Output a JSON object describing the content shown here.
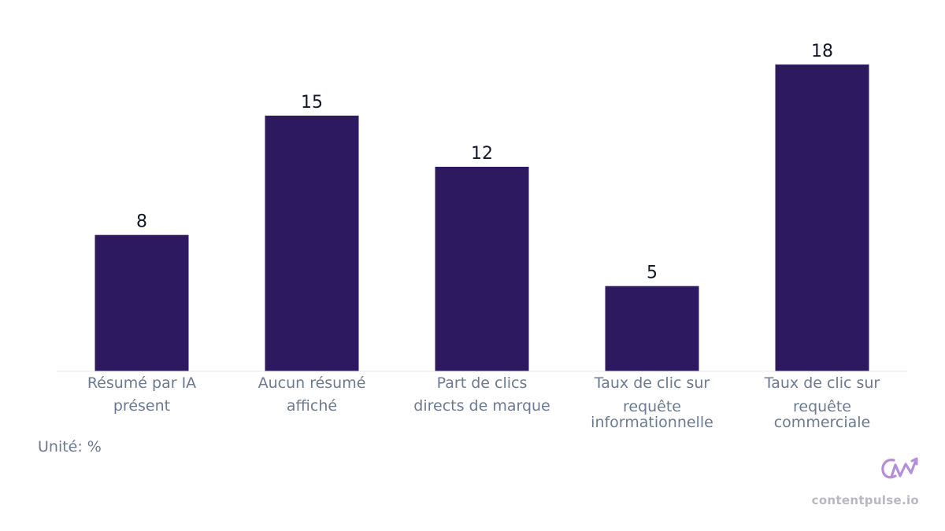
{
  "chart_data": {
    "type": "bar",
    "categories": [
      [
        "Résumé par IA",
        "présent"
      ],
      [
        "Aucun résumé",
        "affiché"
      ],
      [
        "Part de clics",
        "directs de marque"
      ],
      [
        "Taux de clic sur",
        "requête",
        "informationnelle"
      ],
      [
        "Taux de clic sur",
        "requête",
        "commerciale"
      ]
    ],
    "values": [
      8,
      15,
      12,
      5,
      18
    ],
    "ylim": [
      0,
      18
    ],
    "bar_color": "#2d1960",
    "value_label_color": "#111827",
    "tick_label_color": "#6b7a90",
    "axis_color": "#e5e7eb",
    "grid": false
  },
  "unit_note": "Unité: %",
  "brand": {
    "name": "contentpulse.io",
    "logo_icon": "cp-arrow-logo",
    "logo_color": "#b48fd8"
  }
}
